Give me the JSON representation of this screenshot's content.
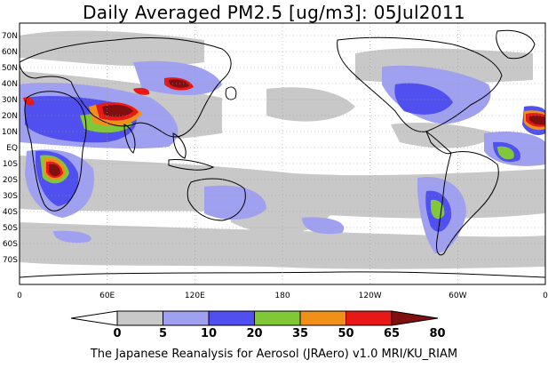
{
  "title": "Daily Averaged PM2.5 [ug/m3]: 05Jul2011",
  "footer": "The Japanese Reanalysis for Aerosol (JRAero) v1.0 MRI/KU_RIAM",
  "lat_labels": [
    "70N",
    "60N",
    "50N",
    "40N",
    "30N",
    "20N",
    "10N",
    "EQ",
    "10S",
    "20S",
    "30S",
    "40S",
    "50S",
    "60S",
    "70S"
  ],
  "lon_labels": [
    "0",
    "60E",
    "120E",
    "180",
    "120W",
    "60W",
    "0"
  ],
  "colorbar": {
    "ticks": [
      "0",
      "5",
      "10",
      "20",
      "35",
      "50",
      "65",
      "80"
    ],
    "colors": [
      "#ffffff",
      "#c8c8c8",
      "#a0a0f0",
      "#5050f0",
      "#80c838",
      "#f09018",
      "#e81818",
      "#801010"
    ]
  },
  "legend_classes": [
    {
      "range": "0-5",
      "color": "#ffffff"
    },
    {
      "range": "5-10",
      "color": "#c8c8c8"
    },
    {
      "range": "10-20",
      "color": "#a0a0f0"
    },
    {
      "range": "20-35",
      "color": "#5050f0"
    },
    {
      "range": "35-50",
      "color": "#80c838"
    },
    {
      "range": "50-65",
      "color": "#f09018"
    },
    {
      "range": "65-80",
      "color": "#e81818"
    },
    {
      "range": ">80",
      "color": "#801010"
    }
  ]
}
